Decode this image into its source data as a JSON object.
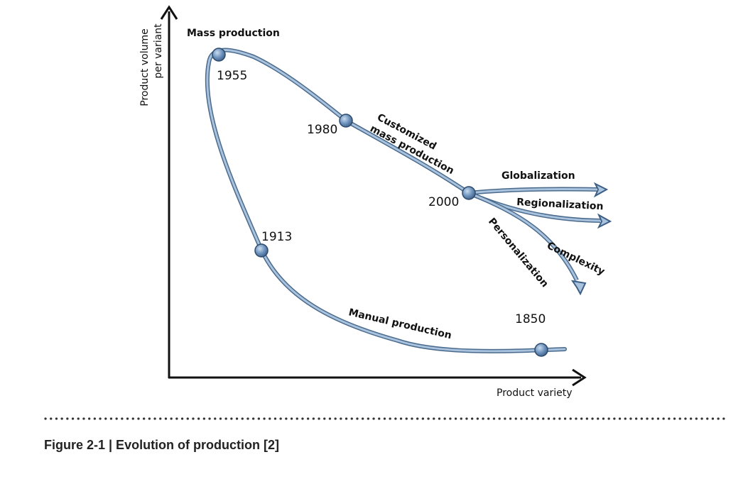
{
  "axes": {
    "y_label_line1": "Product volume",
    "y_label_line2": "per variant",
    "x_label": "Product variety"
  },
  "years": {
    "y1850": "1850",
    "y1913": "1913",
    "y1955": "1955",
    "y1980": "1980",
    "y2000": "2000"
  },
  "phases": {
    "mass": "Mass production",
    "customized_line1": "Customized",
    "customized_line2": "mass production",
    "manual": "Manual production"
  },
  "trends": {
    "globalization": "Globalization",
    "regionalization": "Regionalization",
    "personalization": "Personalization",
    "complexity": "Complexity"
  },
  "caption": "Figure 2-1 | Evolution of production [2]",
  "colors": {
    "curve": "#7fa3c8",
    "curve_edge": "#4a6a8c",
    "node": "#6e93bd",
    "axis": "#111111"
  }
}
